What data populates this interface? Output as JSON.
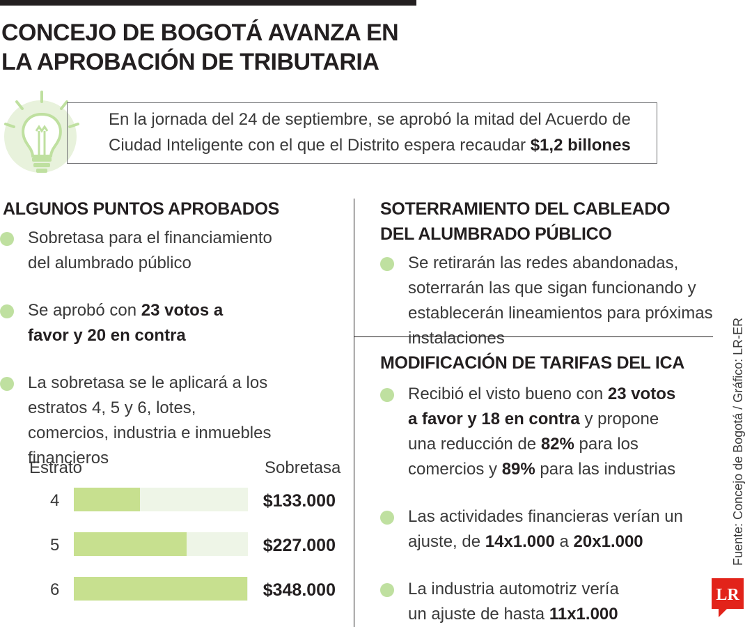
{
  "title": "CONCEJO DE BOGOTÁ AVANZA EN\nLA APROBACIÓN DE TRIBUTARIA",
  "intro": {
    "text": "En la jornada del 24 de septiembre, se aprobó la mitad del Acuerdo de Ciudad Inteligente con el que el Distrito espera recaudar ",
    "highlight": "$1,2 billones"
  },
  "left": {
    "title": "ALGUNOS PUNTOS APROBADOS",
    "b1": "Sobretasa para el financiamiento del alumbrado público",
    "b2_pre": "Se aprobó con ",
    "b2_bold": "23 votos a favor y 20 en contra",
    "b3": "La sobretasa se le aplicará a los estratos 4, 5 y 6, lotes, comercios, industria e inmuebles financieros"
  },
  "table": {
    "col_left": "Estrato",
    "col_right": "Sobretasa",
    "rows": [
      {
        "label": "4",
        "value": "$133.000",
        "amount": 133000
      },
      {
        "label": "5",
        "value": "$227.000",
        "amount": 227000
      },
      {
        "label": "6",
        "value": "$348.000",
        "amount": 348000
      }
    ]
  },
  "right_top": {
    "title": "SOTERRAMIENTO DEL CABLEADO\nDEL ALUMBRADO PÚBLICO",
    "b1": "Se retirarán las redes abandonadas, soterrarán las que sigan funcionando y establecerán lineamientos para próximas instalaciones"
  },
  "right_bottom": {
    "title": "MODIFICACIÓN DE TARIFAS DEL ICA",
    "b1_a": "Recibió el visto bueno con ",
    "b1_b": "23 votos a favor y 18 en contra",
    "b1_c": " y propone una reducción de ",
    "b1_d": "82%",
    "b1_e": " para los comercios y ",
    "b1_f": "89%",
    "b1_g": " para las industrias",
    "b2_a": "Las actividades financieras verían un ajuste, de ",
    "b2_b": "14x1.000",
    "b2_c": " a ",
    "b2_d": "20x1.000",
    "b3_a": "La industria automotriz vería un ajuste de hasta ",
    "b3_b": "11x1.000"
  },
  "source": "Fuente: Concejo de Bogotá / Gráfico: LR-ER",
  "logo": "LR",
  "colors": {
    "accent_green": "#bfe0a0",
    "bar_green": "#c7e08f",
    "bar_track": "#eef5e7",
    "logo_red": "#e2231a"
  }
}
